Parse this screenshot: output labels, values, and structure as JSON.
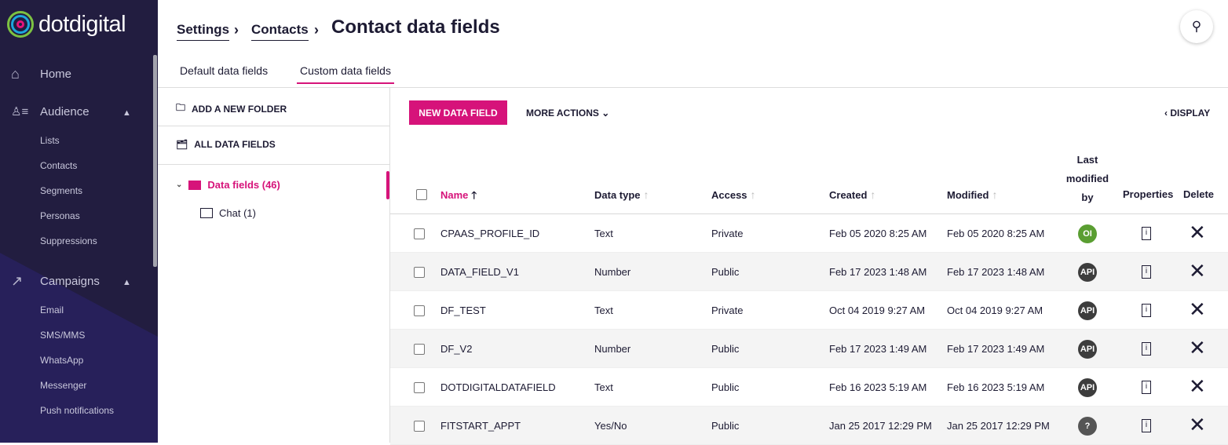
{
  "brand": {
    "name": "dotdigital"
  },
  "sidebar": {
    "home": "Home",
    "audience": {
      "label": "Audience",
      "items": [
        "Lists",
        "Contacts",
        "Segments",
        "Personas",
        "Suppressions"
      ]
    },
    "campaigns": {
      "label": "Campaigns",
      "items": [
        "Email",
        "SMS/MMS",
        "WhatsApp",
        "Messenger",
        "Push notifications"
      ]
    }
  },
  "breadcrumb": [
    "Settings",
    "Contacts"
  ],
  "title": "Contact data fields",
  "tabs": [
    "Default data fields",
    "Custom data fields"
  ],
  "folders": {
    "add": "ADD A NEW FOLDER",
    "all": "ALL DATA FIELDS",
    "tree": [
      {
        "label": "Data fields (46)"
      },
      {
        "label": "Chat (1)"
      }
    ]
  },
  "toolbar": {
    "new": "NEW DATA FIELD",
    "more": "MORE ACTIONS",
    "display": "DISPLAY"
  },
  "columns": {
    "name": "Name",
    "type": "Data type",
    "access": "Access",
    "created": "Created",
    "modified": "Modified",
    "last1": "Last",
    "last2": "modified",
    "last3": "by",
    "properties": "Properties",
    "delete": "Delete"
  },
  "colors": {
    "accent": "#d6137a",
    "sidebar": "#27205a"
  },
  "rows": [
    {
      "name": "CPAAS_PROFILE_ID",
      "type": "Text",
      "access": "Private",
      "created": "Feb 05 2020 8:25 AM",
      "modified": "Feb 05 2020 8:25 AM",
      "by": "OI",
      "by_color": "#5a9e32"
    },
    {
      "name": "DATA_FIELD_V1",
      "type": "Number",
      "access": "Public",
      "created": "Feb 17 2023 1:48 AM",
      "modified": "Feb 17 2023 1:48 AM",
      "by": "API",
      "by_color": "#3d3d3d"
    },
    {
      "name": "DF_TEST",
      "type": "Text",
      "access": "Private",
      "created": "Oct 04 2019 9:27 AM",
      "modified": "Oct 04 2019 9:27 AM",
      "by": "API",
      "by_color": "#3d3d3d"
    },
    {
      "name": "DF_V2",
      "type": "Number",
      "access": "Public",
      "created": "Feb 17 2023 1:49 AM",
      "modified": "Feb 17 2023 1:49 AM",
      "by": "API",
      "by_color": "#3d3d3d"
    },
    {
      "name": "DOTDIGITALDATAFIELD",
      "type": "Text",
      "access": "Public",
      "created": "Feb 16 2023 5:19 AM",
      "modified": "Feb 16 2023 5:19 AM",
      "by": "API",
      "by_color": "#3d3d3d"
    },
    {
      "name": "FITSTART_APPT",
      "type": "Yes/No",
      "access": "Public",
      "created": "Jan 25 2017 12:29 PM",
      "modified": "Jan 25 2017 12:29 PM",
      "by": "?",
      "by_color": "#555"
    }
  ]
}
